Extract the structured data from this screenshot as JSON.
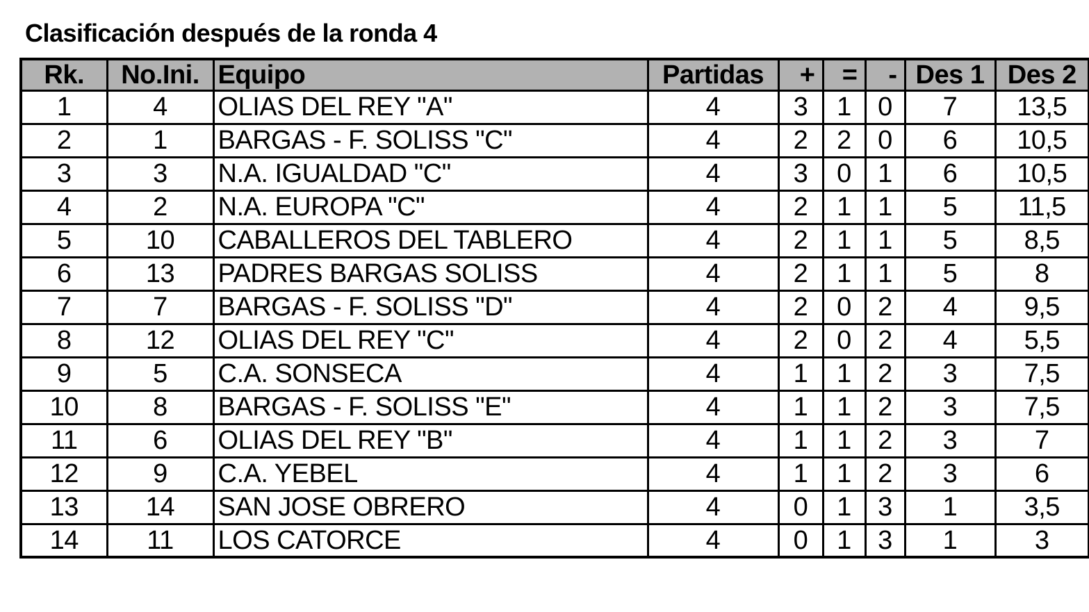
{
  "page": {
    "title": "Clasificación después de la ronda 4"
  },
  "colors": {
    "header_bg": "#b2b2b2",
    "border": "#000000",
    "row_bg": "#ffffff",
    "text": "#000000"
  },
  "table": {
    "headers": [
      "Rk.",
      "No.Ini.",
      "Equipo",
      "Partidas",
      "+",
      "=",
      "-",
      "Des 1",
      "Des 2"
    ],
    "rows": [
      [
        "1",
        "4",
        "OLIAS DEL REY \"A\"",
        "4",
        "3",
        "1",
        "0",
        "7",
        "13,5"
      ],
      [
        "2",
        "1",
        "BARGAS - F. SOLISS \"C\"",
        "4",
        "2",
        "2",
        "0",
        "6",
        "10,5"
      ],
      [
        "3",
        "3",
        "N.A. IGUALDAD \"C\"",
        "4",
        "3",
        "0",
        "1",
        "6",
        "10,5"
      ],
      [
        "4",
        "2",
        "N.A. EUROPA \"C\"",
        "4",
        "2",
        "1",
        "1",
        "5",
        "11,5"
      ],
      [
        "5",
        "10",
        "CABALLEROS DEL TABLERO",
        "4",
        "2",
        "1",
        "1",
        "5",
        "8,5"
      ],
      [
        "6",
        "13",
        "PADRES BARGAS SOLISS",
        "4",
        "2",
        "1",
        "1",
        "5",
        "8"
      ],
      [
        "7",
        "7",
        "BARGAS - F. SOLISS \"D\"",
        "4",
        "2",
        "0",
        "2",
        "4",
        "9,5"
      ],
      [
        "8",
        "12",
        "OLIAS DEL REY \"C\"",
        "4",
        "2",
        "0",
        "2",
        "4",
        "5,5"
      ],
      [
        "9",
        "5",
        "C.A. SONSECA",
        "4",
        "1",
        "1",
        "2",
        "3",
        "7,5"
      ],
      [
        "10",
        "8",
        "BARGAS - F. SOLISS \"E\"",
        "4",
        "1",
        "1",
        "2",
        "3",
        "7,5"
      ],
      [
        "11",
        "6",
        "OLIAS DEL REY \"B\"",
        "4",
        "1",
        "1",
        "2",
        "3",
        "7"
      ],
      [
        "12",
        "9",
        "C.A. YEBEL",
        "4",
        "1",
        "1",
        "2",
        "3",
        "6"
      ],
      [
        "13",
        "14",
        "SAN JOSE OBRERO",
        "4",
        "0",
        "1",
        "3",
        "1",
        "3,5"
      ],
      [
        "14",
        "11",
        "LOS CATORCE",
        "4",
        "0",
        "1",
        "3",
        "1",
        "3"
      ]
    ]
  }
}
